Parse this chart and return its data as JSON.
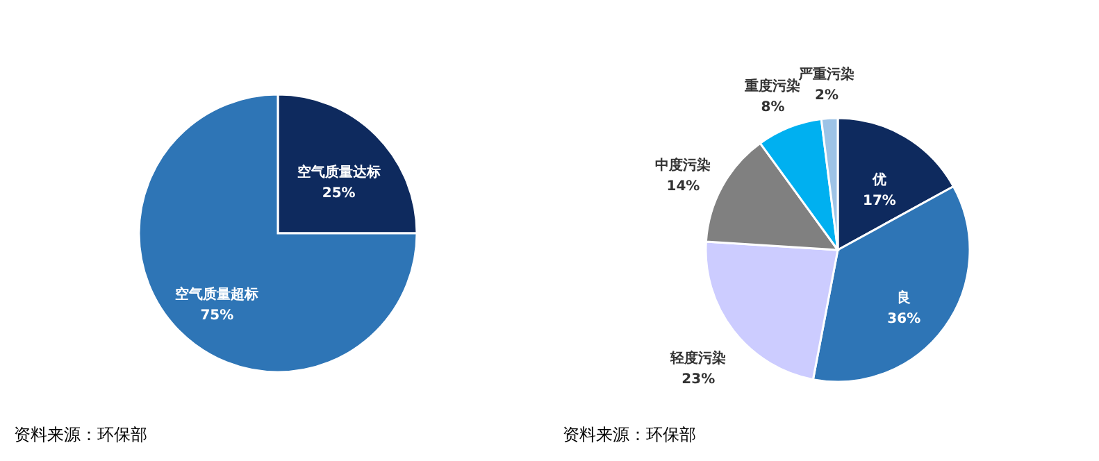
{
  "chart_data": [
    {
      "type": "pie",
      "categories": [
        "空气质量达标",
        "空气质量超标"
      ],
      "values": [
        25,
        75
      ],
      "value_labels": [
        "25%",
        "75%"
      ],
      "colors": [
        "#0e2a5e",
        "#2e75b6"
      ],
      "annotations": [
        "资料来源：环保部"
      ]
    },
    {
      "type": "pie",
      "categories": [
        "优",
        "良",
        "轻度污染",
        "中度污染",
        "重度污染",
        "严重污染"
      ],
      "values": [
        17,
        36,
        23,
        14,
        8,
        2
      ],
      "value_labels": [
        "17%",
        "36%",
        "23%",
        "14%",
        "8%",
        "2%"
      ],
      "colors": [
        "#0e2a5e",
        "#2e75b6",
        "#ccccff",
        "#808080",
        "#00b0f0",
        "#9dc3e6"
      ],
      "annotations": [
        "资料来源：环保部"
      ]
    }
  ]
}
